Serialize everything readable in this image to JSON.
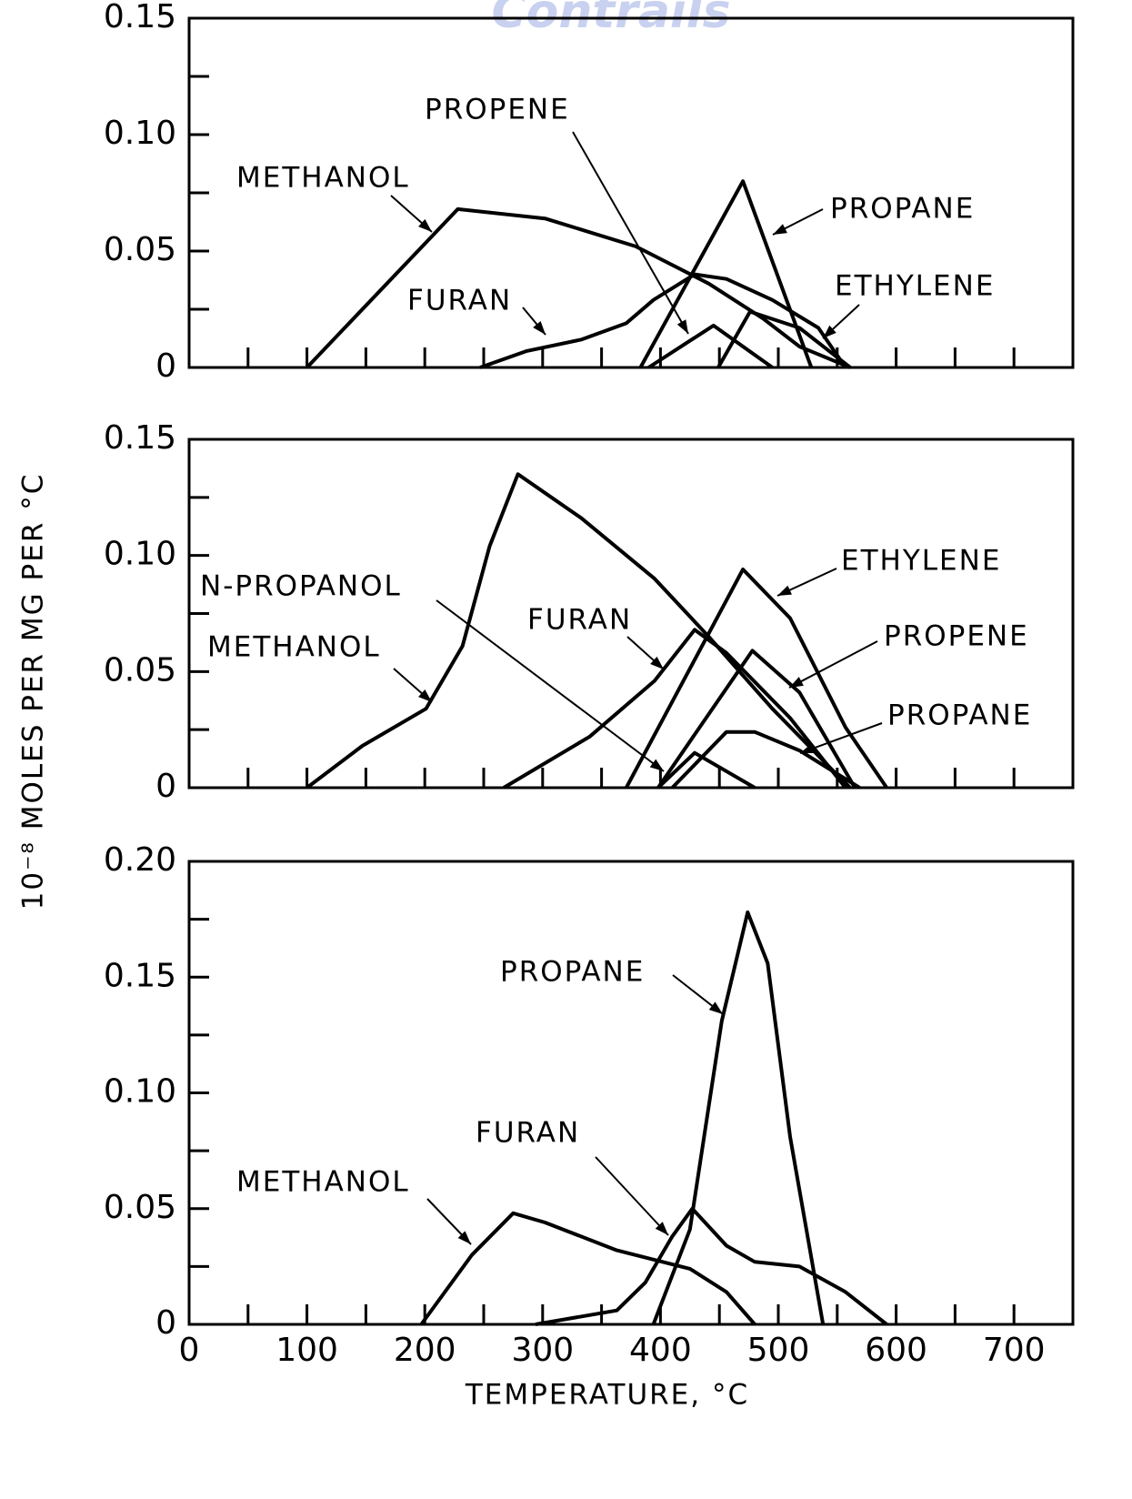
{
  "ylabel": "10⁻⁸ MOLES PER MG PER °C",
  "watermark": "Contrails",
  "chart_data": [
    {
      "type": "line",
      "xlim": [
        0,
        750
      ],
      "ylim": [
        0,
        0.15
      ],
      "yticks": [
        0,
        {
          "value": 0.05,
          "label": "0.05"
        },
        {
          "value": 0.1,
          "label": "0.10"
        },
        {
          "value": 0.15,
          "label": "0.15"
        }
      ],
      "ytick_marks": [
        0.025,
        0.075,
        0.125
      ],
      "xtick_marks": [
        50,
        100,
        150,
        200,
        250,
        300,
        350,
        400,
        450,
        500,
        550,
        600,
        650,
        700
      ],
      "series": [
        {
          "name": "METHANOL",
          "color": "#000000",
          "x": [
            100,
            228,
            302,
            379,
            441,
            487,
            518,
            561
          ],
          "values": [
            0,
            0.068,
            0.064,
            0.052,
            0.036,
            0.021,
            0.009,
            0
          ]
        },
        {
          "name": "FURAN",
          "color": "#000000",
          "x": [
            247,
            286,
            333,
            371,
            394,
            429,
            456,
            495,
            534,
            557
          ],
          "values": [
            0,
            0.007,
            0.012,
            0.019,
            0.029,
            0.04,
            0.038,
            0.029,
            0.017,
            0
          ]
        },
        {
          "name": "PROPENE",
          "color": "#000000",
          "x": [
            390,
            445,
            495
          ],
          "values": [
            0,
            0.018,
            0
          ]
        },
        {
          "name": "PROPANE",
          "color": "#000000",
          "x": [
            383,
            470,
            528
          ],
          "values": [
            0,
            0.08,
            0
          ]
        },
        {
          "name": "ETHYLENE",
          "color": "#000000",
          "x": [
            449,
            476,
            518,
            561
          ],
          "values": [
            0,
            0.024,
            0.017,
            0
          ]
        }
      ]
    },
    {
      "type": "line",
      "xlim": [
        0,
        750
      ],
      "ylim": [
        0,
        0.15
      ],
      "yticks": [
        0,
        {
          "value": 0.05,
          "label": "0.05"
        },
        {
          "value": 0.1,
          "label": "0.10"
        },
        {
          "value": 0.15,
          "label": "0.15"
        }
      ],
      "ytick_marks": [
        0.025,
        0.075,
        0.125
      ],
      "xtick_marks": [
        50,
        100,
        150,
        200,
        250,
        300,
        350,
        400,
        450,
        500,
        550,
        600,
        650,
        700
      ],
      "series": [
        {
          "name": "N-PROPANOL",
          "color": "#000000",
          "x": [
            398,
            429,
            480
          ],
          "values": [
            0,
            0.015,
            0
          ]
        },
        {
          "name": "METHANOL",
          "color": "#000000",
          "x": [
            100,
            147,
            201,
            232,
            255,
            279,
            333,
            395,
            441,
            495,
            549,
            561
          ],
          "values": [
            0,
            0.018,
            0.034,
            0.061,
            0.104,
            0.135,
            0.116,
            0.09,
            0.065,
            0.034,
            0.006,
            0
          ]
        },
        {
          "name": "FURAN",
          "color": "#000000",
          "x": [
            267,
            340,
            395,
            429,
            456,
            510,
            557
          ],
          "values": [
            0,
            0.022,
            0.046,
            0.068,
            0.058,
            0.03,
            0
          ]
        },
        {
          "name": "ETHYLENE",
          "color": "#000000",
          "x": [
            371,
            470,
            510,
            557,
            592
          ],
          "values": [
            0,
            0.094,
            0.073,
            0.026,
            0
          ]
        },
        {
          "name": "PROPENE",
          "color": "#000000",
          "x": [
            398,
            478,
            518,
            565
          ],
          "values": [
            0,
            0.059,
            0.041,
            0
          ]
        },
        {
          "name": "PROPANE",
          "color": "#000000",
          "x": [
            410,
            456,
            480,
            518,
            569
          ],
          "values": [
            0,
            0.024,
            0.024,
            0.016,
            0
          ]
        }
      ]
    },
    {
      "type": "line",
      "xlim": [
        0,
        750
      ],
      "ylim": [
        0,
        0.2
      ],
      "xlabel": "TEMPERATURE, °C",
      "yticks": [
        0,
        {
          "value": 0.05,
          "label": "0.05"
        },
        {
          "value": 0.1,
          "label": "0.10"
        },
        {
          "value": 0.15,
          "label": "0.15"
        },
        {
          "value": 0.2,
          "label": "0.20"
        }
      ],
      "ytick_marks": [
        0.025,
        0.075,
        0.125,
        0.175
      ],
      "xticks": [
        0,
        100,
        200,
        300,
        400,
        500,
        600,
        700
      ],
      "xtick_marks": [
        50,
        150,
        250,
        350,
        450,
        550,
        650
      ],
      "series": [
        {
          "name": "PROPANE",
          "color": "#000000",
          "x": [
            394,
            425,
            452,
            474,
            491,
            510,
            538
          ],
          "values": [
            0,
            0.041,
            0.131,
            0.178,
            0.156,
            0.081,
            0
          ]
        },
        {
          "name": "FURAN",
          "color": "#000000",
          "x": [
            294,
            363,
            387,
            410,
            427,
            456,
            480,
            518,
            557,
            592
          ],
          "values": [
            0,
            0.006,
            0.018,
            0.038,
            0.05,
            0.034,
            0.027,
            0.025,
            0.014,
            0
          ]
        },
        {
          "name": "METHANOL",
          "color": "#000000",
          "x": [
            197,
            240,
            275,
            302,
            363,
            425,
            456,
            480
          ],
          "values": [
            0,
            0.03,
            0.048,
            0.044,
            0.032,
            0.024,
            0.014,
            0
          ]
        }
      ]
    }
  ]
}
